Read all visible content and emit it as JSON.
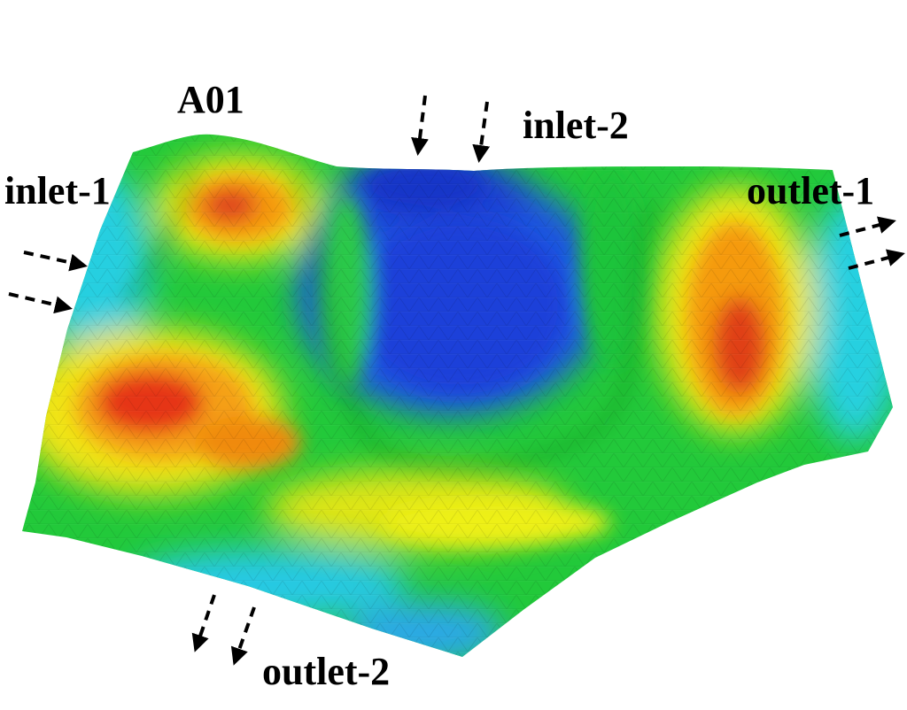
{
  "figure": {
    "label": "A01",
    "inlets": [
      {
        "name": "inlet-1",
        "arrow_direction": "right",
        "arrow_count": 2,
        "arrow_style": "dashed"
      },
      {
        "name": "inlet-2",
        "arrow_direction": "down",
        "arrow_count": 2,
        "arrow_style": "dashed"
      }
    ],
    "outlets": [
      {
        "name": "outlet-1",
        "arrow_direction": "right",
        "arrow_count": 2,
        "arrow_style": "dashed"
      },
      {
        "name": "outlet-2",
        "arrow_direction": "down-left",
        "arrow_count": 2,
        "arrow_style": "dashed"
      }
    ],
    "surface": {
      "rendering": "3D triangulated surface with jet colormap",
      "colormap": [
        "#1a3fd9",
        "#1c7fe6",
        "#22d8e6",
        "#1fd03a",
        "#8ee11a",
        "#f0f012",
        "#f59b10",
        "#e63010"
      ]
    }
  }
}
